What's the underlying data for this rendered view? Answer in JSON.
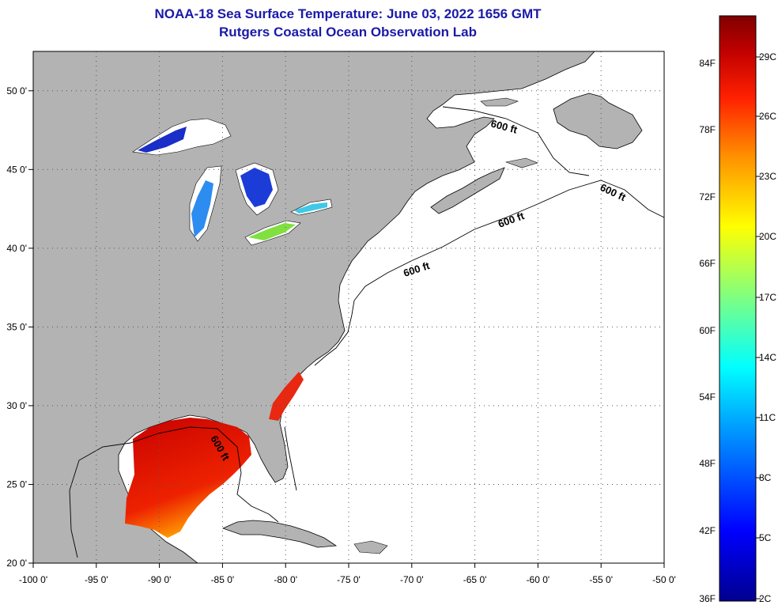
{
  "title": "NOAA-18 Sea Surface Temperature:  June 03, 2022 1656 GMT",
  "subtitle": "Rutgers Coastal Ocean Observation Lab",
  "map": {
    "lon_range": [
      -100,
      -50
    ],
    "lat_range": [
      20,
      52.5
    ],
    "lon_ticks": [
      {
        "value": -100,
        "label": "-100 0'"
      },
      {
        "value": -95,
        "label": "-95 0'"
      },
      {
        "value": -90,
        "label": "-90 0'"
      },
      {
        "value": -85,
        "label": "-85 0'"
      },
      {
        "value": -80,
        "label": "-80 0'"
      },
      {
        "value": -75,
        "label": "-75 0'"
      },
      {
        "value": -70,
        "label": "-70 0'"
      },
      {
        "value": -65,
        "label": "-65 0'"
      },
      {
        "value": -60,
        "label": "-60 0'"
      },
      {
        "value": -55,
        "label": "-55 0'"
      },
      {
        "value": -50,
        "label": "-50 0'"
      }
    ],
    "lat_ticks": [
      {
        "value": 50,
        "label": "50 0'"
      },
      {
        "value": 45,
        "label": "45 0'"
      },
      {
        "value": 40,
        "label": "40 0'"
      },
      {
        "value": 35,
        "label": "35 0'"
      },
      {
        "value": 30,
        "label": "30 0'"
      },
      {
        "value": 25,
        "label": "25 0'"
      },
      {
        "value": 20,
        "label": "20 0'"
      }
    ],
    "grid": "dotted",
    "land_color": "#b3b3b3",
    "ocean_color": "#ffffff",
    "contour_labels": [
      "600 ft",
      "600 ft",
      "600 ft",
      "600 ft",
      "600 ft"
    ]
  },
  "colorbar": {
    "colors": [
      "#00008f",
      "#0000ff",
      "#00a0ff",
      "#00ffff",
      "#80ff80",
      "#ffff00",
      "#ff9000",
      "#ff2000",
      "#c00000",
      "#800000"
    ],
    "fahrenheit_labels": [
      "84F",
      "78F",
      "72F",
      "66F",
      "60F",
      "54F",
      "48F",
      "42F",
      "36F"
    ],
    "celsius_labels": [
      "29C",
      "26C",
      "23C",
      "20C",
      "17C",
      "14C",
      "11C",
      "8C",
      "5C",
      "2C"
    ]
  }
}
